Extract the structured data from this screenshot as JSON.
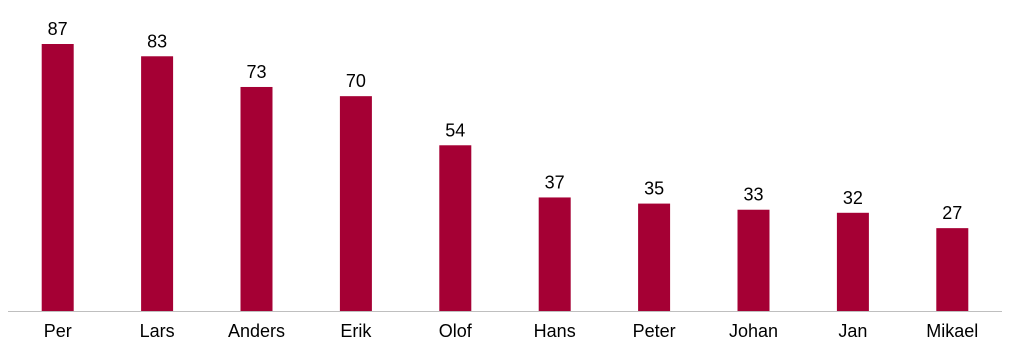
{
  "chart_data": {
    "type": "bar",
    "categories": [
      "Per",
      "Lars",
      "Anders",
      "Erik",
      "Olof",
      "Hans",
      "Peter",
      "Johan",
      "Jan",
      "Mikael"
    ],
    "values": [
      87,
      83,
      73,
      70,
      54,
      37,
      35,
      33,
      32,
      27
    ],
    "title": "",
    "xlabel": "",
    "ylabel": "",
    "ylim": [
      0,
      87
    ],
    "grid": false,
    "legend": "none",
    "data_labels": true,
    "bar_color": "#A50034",
    "axis_color": "#BFBFBF",
    "text_color": "#000000"
  }
}
